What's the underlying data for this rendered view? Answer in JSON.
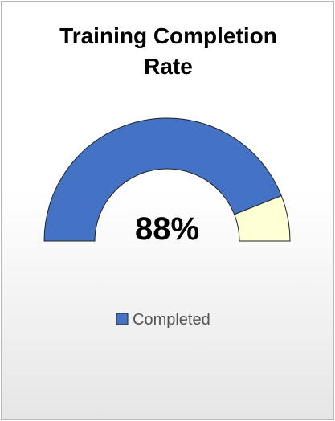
{
  "chart_data": {
    "type": "gauge",
    "title": "Training Completion Rate",
    "categories": [
      "Completed",
      null
    ],
    "values": [
      88,
      12
    ],
    "value_labels": [
      "88%",
      null
    ],
    "colors": [
      "#4472c4",
      "#ffffd6"
    ],
    "legend": "bottom"
  }
}
